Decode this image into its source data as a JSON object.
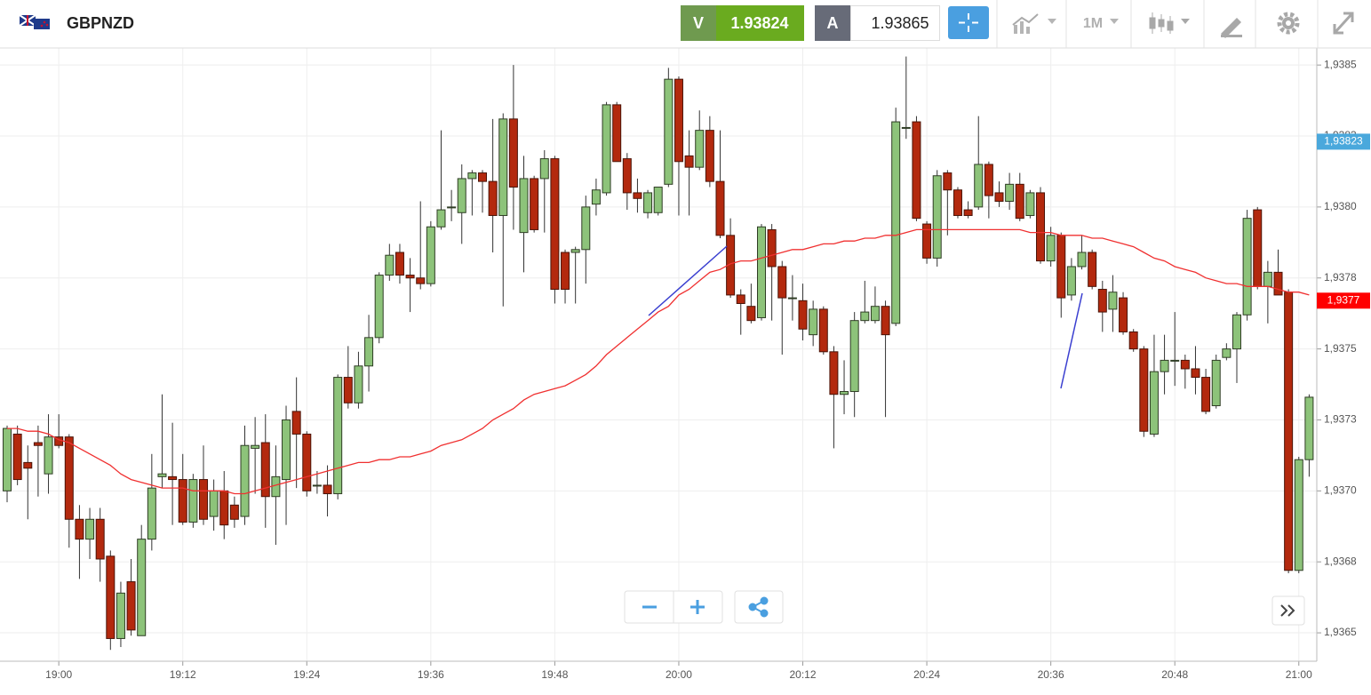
{
  "header": {
    "symbol": "GBPNZD",
    "sell_label": "V",
    "sell_price": "1.93824",
    "buy_label": "A",
    "buy_price": "1.93865",
    "timeframe": "1M"
  },
  "chart_data": {
    "type": "candlestick",
    "up_color": "#8dc37a",
    "down_color": "#b3290e",
    "grid": true,
    "categories": [
      null,
      null,
      null,
      null,
      null,
      "19:00",
      null,
      null,
      null,
      null,
      null,
      null,
      null,
      null,
      null,
      null,
      null,
      "19:12",
      null,
      null,
      null,
      null,
      null,
      null,
      null,
      null,
      null,
      null,
      null,
      "19:24",
      null,
      null,
      null,
      null,
      null,
      null,
      null,
      null,
      null,
      null,
      null,
      "19:36",
      null,
      null,
      null,
      null,
      null,
      null,
      null,
      null,
      null,
      null,
      null,
      "19:48",
      null,
      null,
      null,
      null,
      null,
      null,
      null,
      null,
      null,
      null,
      null,
      "20:00",
      null,
      null,
      null,
      null,
      null,
      null,
      null,
      null,
      null,
      null,
      null,
      "20:12",
      null,
      null,
      null,
      null,
      null,
      null,
      null,
      null,
      null,
      null,
      null,
      "20:24",
      null,
      null,
      null,
      null,
      null,
      null,
      null,
      null,
      null,
      null,
      null,
      "20:36",
      null,
      null,
      null,
      null,
      null,
      null,
      null,
      null,
      null,
      null,
      null,
      "20:48",
      null,
      null,
      null,
      null,
      null,
      null,
      null,
      null,
      null,
      null,
      null,
      "21:00",
      null
    ],
    "open": [
      1.937,
      1.9372,
      1.9371,
      1.93717,
      1.93706,
      1.93719,
      1.93719,
      1.9369,
      1.93683,
      1.9369,
      1.93677,
      1.93648,
      1.93668,
      1.93649,
      1.93683,
      1.93705,
      1.93705,
      1.93704,
      1.93689,
      1.93704,
      1.93691,
      1.937,
      1.93695,
      1.93691,
      1.93715,
      1.93717,
      1.93698,
      1.93704,
      1.93728,
      1.9372,
      1.93702,
      1.93702,
      1.93699,
      1.9374,
      1.93731,
      1.93744,
      1.93754,
      1.93776,
      1.93784,
      1.93776,
      1.93775,
      1.93773,
      1.93793,
      1.938,
      1.93798,
      1.9381,
      1.93812,
      1.93809,
      1.93797,
      1.93831,
      1.93791,
      1.9381,
      1.9381,
      1.93817,
      1.93784,
      1.93784,
      1.93785,
      1.93801,
      1.93805,
      1.93836,
      1.93817,
      1.93805,
      1.93798,
      1.93798,
      1.93808,
      1.93845,
      1.93818,
      1.93814,
      1.93827,
      1.93809,
      1.9379,
      1.93769,
      1.93765,
      1.93761,
      1.93792,
      1.93779,
      1.93768,
      1.93767,
      1.93755,
      1.93764,
      1.93749,
      1.93734,
      1.93735,
      1.9376,
      1.9376,
      1.93765,
      1.93759,
      1.93828,
      1.9383,
      1.93794,
      1.93782,
      1.93812,
      1.93806,
      1.93799,
      1.938,
      1.93815,
      1.93805,
      1.93802,
      1.93808,
      1.93797,
      1.93805,
      1.93781,
      1.9379,
      1.93769,
      1.93779,
      1.93784,
      1.93771,
      1.93764,
      1.93768,
      1.93756,
      1.9375,
      1.9372,
      1.93742,
      1.93746,
      1.93746,
      1.93743,
      1.9374,
      1.9373,
      1.93747,
      1.9375,
      1.93762,
      1.93799,
      1.93772,
      1.93777,
      1.9377,
      1.93672,
      1.93711
    ],
    "high": [
      1.93723,
      1.93723,
      1.93716,
      1.93723,
      1.93727,
      1.93727,
      1.9372,
      1.93695,
      1.93694,
      1.93694,
      1.93679,
      1.93668,
      1.93676,
      1.93688,
      1.93713,
      1.93734,
      1.93724,
      1.93713,
      1.93706,
      1.93716,
      1.93704,
      1.93707,
      1.93698,
      1.93723,
      1.93726,
      1.93727,
      1.93716,
      1.9373,
      1.9374,
      1.93721,
      1.93707,
      1.93709,
      1.93741,
      1.93751,
      1.93749,
      1.93762,
      1.93777,
      1.93787,
      1.93787,
      1.93782,
      1.93802,
      1.93795,
      1.93827,
      1.93806,
      1.93815,
      1.93813,
      1.93813,
      1.93831,
      1.93833,
      1.9385,
      1.93818,
      1.93811,
      1.9382,
      1.93818,
      1.93785,
      1.93786,
      1.93804,
      1.9381,
      1.93837,
      1.93837,
      1.93819,
      1.9381,
      1.93806,
      1.93807,
      1.93849,
      1.93846,
      1.93827,
      1.93834,
      1.93832,
      1.93827,
      1.93796,
      1.93771,
      1.93773,
      1.93794,
      1.93794,
      1.93781,
      1.93776,
      1.93773,
      1.93767,
      1.93765,
      1.93751,
      1.93746,
      1.93763,
      1.93774,
      1.93772,
      1.93767,
      1.93835,
      1.93853,
      1.93832,
      1.93795,
      1.93813,
      1.93813,
      1.93807,
      1.93802,
      1.93832,
      1.93816,
      1.93809,
      1.93812,
      1.93812,
      1.93806,
      1.93807,
      1.93793,
      1.93791,
      1.93782,
      1.9379,
      1.93785,
      1.93774,
      1.93776,
      1.9377,
      1.93757,
      1.93751,
      1.93755,
      1.93755,
      1.93763,
      1.93748,
      1.93751,
      1.93743,
      1.93748,
      1.93752,
      1.93763,
      1.93799,
      1.938,
      1.93781,
      1.93785,
      1.93771,
      1.93712,
      1.93734
    ],
    "low": [
      1.93696,
      1.93702,
      1.9369,
      1.93698,
      1.93699,
      1.93715,
      1.9368,
      1.93669,
      1.93676,
      1.93668,
      1.93644,
      1.93645,
      1.93649,
      1.93649,
      1.93679,
      1.93701,
      1.93688,
      1.93688,
      1.93687,
      1.93688,
      1.93686,
      1.93683,
      1.93687,
      1.93688,
      1.93699,
      1.93687,
      1.93681,
      1.93688,
      1.93701,
      1.93698,
      1.93699,
      1.93691,
      1.93697,
      1.93729,
      1.93729,
      1.93735,
      1.93752,
      1.93774,
      1.93773,
      1.93763,
      1.93771,
      1.93772,
      1.93792,
      1.93795,
      1.93787,
      1.93797,
      1.93798,
      1.93784,
      1.93765,
      1.93792,
      1.93777,
      1.93791,
      1.93791,
      1.93766,
      1.93766,
      1.93766,
      1.93773,
      1.93797,
      1.93804,
      1.93816,
      1.93799,
      1.93798,
      1.93796,
      1.93797,
      1.93807,
      1.93797,
      1.93797,
      1.93813,
      1.93807,
      1.93789,
      1.93768,
      1.93755,
      1.93759,
      1.9376,
      1.9376,
      1.93748,
      1.9376,
      1.93753,
      1.93751,
      1.93748,
      1.93715,
      1.93727,
      1.93726,
      1.93759,
      1.93759,
      1.93726,
      1.93758,
      1.93824,
      1.93795,
      1.9378,
      1.93779,
      1.9379,
      1.93796,
      1.93796,
      1.93799,
      1.93796,
      1.938,
      1.93799,
      1.93795,
      1.93796,
      1.9378,
      1.93779,
      1.93761,
      1.93767,
      1.93778,
      1.93771,
      1.93756,
      1.93756,
      1.93755,
      1.93749,
      1.93719,
      1.93719,
      1.93734,
      1.93737,
      1.93736,
      1.93734,
      1.93727,
      1.93729,
      1.93746,
      1.93738,
      1.9376,
      1.93771,
      1.93759,
      1.93769,
      1.93671,
      1.93671,
      1.93705
    ],
    "close": [
      1.93722,
      1.93704,
      1.93708,
      1.93716,
      1.93719,
      1.93716,
      1.9369,
      1.93683,
      1.9369,
      1.93676,
      1.93648,
      1.93664,
      1.93651,
      1.93683,
      1.93701,
      1.93706,
      1.93704,
      1.93689,
      1.93704,
      1.9369,
      1.937,
      1.93688,
      1.9369,
      1.93716,
      1.93716,
      1.93698,
      1.93705,
      1.93725,
      1.9372,
      1.937,
      1.93702,
      1.93699,
      1.9374,
      1.93731,
      1.93744,
      1.93754,
      1.93776,
      1.93783,
      1.93776,
      1.93775,
      1.93773,
      1.93793,
      1.93799,
      1.938,
      1.9381,
      1.93812,
      1.93809,
      1.93797,
      1.93831,
      1.93807,
      1.9381,
      1.93792,
      1.93817,
      1.93771,
      1.93771,
      1.93785,
      1.938,
      1.93806,
      1.93836,
      1.93816,
      1.93805,
      1.93803,
      1.93805,
      1.93807,
      1.93845,
      1.93816,
      1.93814,
      1.93827,
      1.93809,
      1.9379,
      1.93769,
      1.93766,
      1.9376,
      1.93793,
      1.93779,
      1.93768,
      1.93768,
      1.93757,
      1.93764,
      1.93749,
      1.93734,
      1.93735,
      1.9376,
      1.93763,
      1.93765,
      1.93755,
      1.9383,
      1.93828,
      1.93796,
      1.93782,
      1.93811,
      1.93806,
      1.93797,
      1.93797,
      1.93815,
      1.93804,
      1.93802,
      1.93808,
      1.93796,
      1.93805,
      1.93781,
      1.9379,
      1.93768,
      1.93779,
      1.93784,
      1.93772,
      1.93763,
      1.9377,
      1.93756,
      1.9375,
      1.93721,
      1.93742,
      1.93746,
      1.93746,
      1.93743,
      1.9374,
      1.93728,
      1.93746,
      1.9375,
      1.93762,
      1.93796,
      1.93772,
      1.93777,
      1.93769,
      1.93672,
      1.93711,
      1.93733
    ],
    "moving_average": {
      "color": "#f03030",
      "values": [
        1.93722,
        1.93722,
        1.93721,
        1.93721,
        1.9372,
        1.93718,
        1.93717,
        1.93715,
        1.93713,
        1.93711,
        1.93709,
        1.93706,
        1.93704,
        1.93703,
        1.93702,
        1.93701,
        1.93701,
        1.93701,
        1.937,
        1.937,
        1.937,
        1.937,
        1.93699,
        1.93699,
        1.937,
        1.93701,
        1.93702,
        1.93703,
        1.93704,
        1.93705,
        1.93706,
        1.93707,
        1.93708,
        1.93709,
        1.9371,
        1.9371,
        1.93711,
        1.93711,
        1.93712,
        1.93712,
        1.93713,
        1.93714,
        1.93716,
        1.93717,
        1.93718,
        1.9372,
        1.93722,
        1.93725,
        1.93727,
        1.93729,
        1.93732,
        1.93734,
        1.93735,
        1.93736,
        1.93737,
        1.93739,
        1.93741,
        1.93744,
        1.93748,
        1.93751,
        1.93754,
        1.93757,
        1.9376,
        1.93763,
        1.93765,
        1.93769,
        1.93771,
        1.93774,
        1.93777,
        1.93778,
        1.9378,
        1.93781,
        1.93781,
        1.93782,
        1.93783,
        1.93784,
        1.93785,
        1.93785,
        1.93786,
        1.93787,
        1.93787,
        1.93788,
        1.93788,
        1.93789,
        1.93789,
        1.9379,
        1.9379,
        1.93791,
        1.93792,
        1.93792,
        1.93792,
        1.93792,
        1.93792,
        1.93792,
        1.93792,
        1.93792,
        1.93792,
        1.93792,
        1.93792,
        1.93791,
        1.93791,
        1.93791,
        1.9379,
        1.9379,
        1.9379,
        1.93789,
        1.93789,
        1.93788,
        1.93787,
        1.93786,
        1.93784,
        1.93782,
        1.93781,
        1.93779,
        1.93778,
        1.93777,
        1.93775,
        1.93774,
        1.93773,
        1.93773,
        1.93772,
        1.93772,
        1.93772,
        1.93771,
        1.9377,
        1.9377,
        1.93769
      ]
    },
    "ylim": [
      1.9364,
      1.93856
    ],
    "yticks": [
      {
        "value": 1.9385,
        "label": "1,9385"
      },
      {
        "value": 1.93825,
        "label": "1,9383"
      },
      {
        "value": 1.938,
        "label": "1,9380"
      },
      {
        "value": 1.93775,
        "label": "1,9378"
      },
      {
        "value": 1.9375,
        "label": "1,9375"
      },
      {
        "value": 1.93725,
        "label": "1,9373"
      },
      {
        "value": 1.937,
        "label": "1,9370"
      },
      {
        "value": 1.93675,
        "label": "1,9368"
      },
      {
        "value": 1.9365,
        "label": "1,9365"
      }
    ],
    "price_tags": [
      {
        "value": 1.93823,
        "label": "1,93823",
        "color": "#4aa8dc"
      },
      {
        "value": 1.93767,
        "label": "1,9377",
        "color": "#ff0000"
      }
    ]
  }
}
